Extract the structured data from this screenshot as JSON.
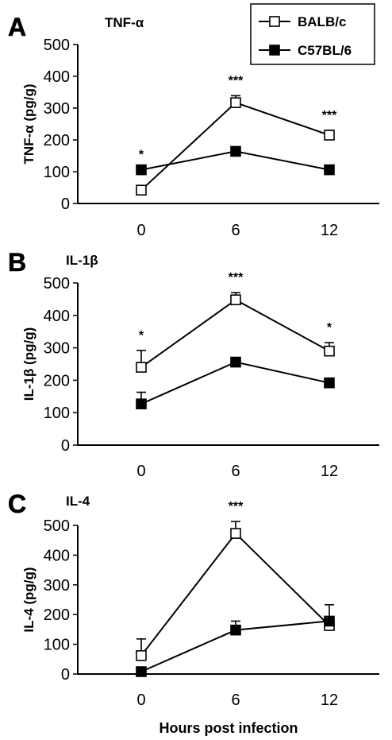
{
  "chart_data": [
    {
      "type": "line",
      "panel": "A",
      "title": "TNF-α",
      "ylabel": "TNF-α (pg/g)",
      "x": [
        0,
        6,
        12
      ],
      "x_tick_labels": [
        "0",
        "6",
        "12"
      ],
      "ylim": [
        0,
        500
      ],
      "y_ticks": [
        0,
        100,
        200,
        300,
        400,
        500
      ],
      "grid": false,
      "legend": "top-right",
      "series": [
        {
          "name": "BALB/c",
          "marker": "open-square",
          "values": [
            42,
            317,
            215
          ],
          "errors": [
            0,
            22,
            15
          ]
        },
        {
          "name": "C57BL/6",
          "marker": "filled-square",
          "values": [
            106,
            164,
            106
          ],
          "errors": [
            0,
            0,
            0
          ]
        }
      ],
      "annotations": [
        {
          "x": 0,
          "text": "*"
        },
        {
          "x": 6,
          "text": "***"
        },
        {
          "x": 12,
          "text": "***"
        }
      ]
    },
    {
      "type": "line",
      "panel": "B",
      "title": "IL-1β",
      "ylabel": "IL-1β (pg/g)",
      "x": [
        0,
        6,
        12
      ],
      "x_tick_labels": [
        "0",
        "6",
        "12"
      ],
      "ylim": [
        0,
        500
      ],
      "y_ticks": [
        0,
        100,
        200,
        300,
        400,
        500
      ],
      "grid": false,
      "series": [
        {
          "name": "BALB/c",
          "marker": "open-square",
          "values": [
            240,
            448,
            290
          ],
          "errors": [
            52,
            22,
            26
          ]
        },
        {
          "name": "C57BL/6",
          "marker": "filled-square",
          "values": [
            127,
            256,
            192
          ],
          "errors": [
            36,
            0,
            0
          ]
        }
      ],
      "annotations": [
        {
          "x": 0,
          "text": "*"
        },
        {
          "x": 6,
          "text": "***"
        },
        {
          "x": 12,
          "text": "*"
        }
      ]
    },
    {
      "type": "line",
      "panel": "C",
      "title": "IL-4",
      "ylabel": "IL-4 (pg/g)",
      "xlabel": "Hours post infection",
      "x": [
        0,
        6,
        12
      ],
      "x_tick_labels": [
        "0",
        "6",
        "12"
      ],
      "ylim": [
        0,
        500
      ],
      "y_ticks": [
        0,
        100,
        200,
        300,
        400,
        500
      ],
      "grid": false,
      "series": [
        {
          "name": "BALB/c",
          "marker": "open-square",
          "values": [
            62,
            473,
            163
          ],
          "errors": [
            56,
            40,
            0
          ]
        },
        {
          "name": "C57BL/6",
          "marker": "filled-square",
          "values": [
            8,
            148,
            178
          ],
          "errors": [
            0,
            30,
            55
          ]
        }
      ],
      "annotations": [
        {
          "x": 6,
          "text": "***"
        }
      ]
    }
  ]
}
